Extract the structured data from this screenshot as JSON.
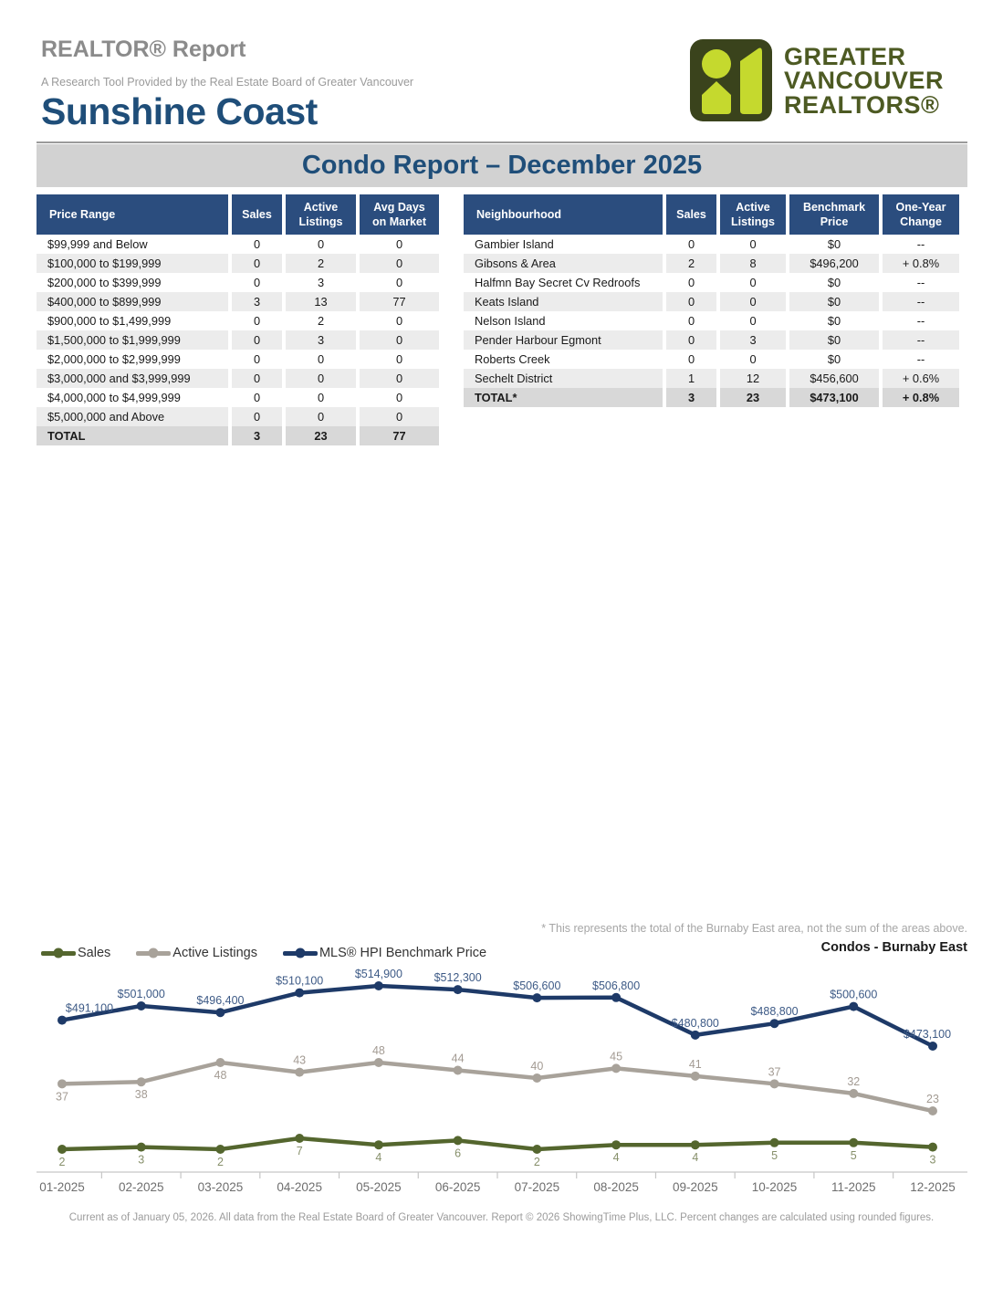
{
  "header": {
    "report_title": "REALTOR® Report",
    "report_subtitle": "A Research Tool Provided by the Real Estate Board of Greater Vancouver",
    "area_title": "Sunshine Coast",
    "banner_title": "Condo Report – December 2025",
    "logo": {
      "line1": "GREATER",
      "line2": "VANCOUVER",
      "line3": "REALTORS®",
      "dark_olive": "#3a431c",
      "lime": "#c5d92e",
      "text_color": "#4d5a23"
    }
  },
  "price_table": {
    "columns": [
      "Price Range",
      "Sales",
      "Active\nListings",
      "Avg Days\non Market"
    ],
    "rows": [
      [
        "$99,999 and Below",
        "0",
        "0",
        "0"
      ],
      [
        "$100,000 to $199,999",
        "0",
        "2",
        "0"
      ],
      [
        "$200,000 to $399,999",
        "0",
        "3",
        "0"
      ],
      [
        "$400,000 to $899,999",
        "3",
        "13",
        "77"
      ],
      [
        "$900,000 to $1,499,999",
        "0",
        "2",
        "0"
      ],
      [
        "$1,500,000 to $1,999,999",
        "0",
        "3",
        "0"
      ],
      [
        "$2,000,000 to $2,999,999",
        "0",
        "0",
        "0"
      ],
      [
        "$3,000,000 and $3,999,999",
        "0",
        "0",
        "0"
      ],
      [
        "$4,000,000 to $4,999,999",
        "0",
        "0",
        "0"
      ],
      [
        "$5,000,000 and Above",
        "0",
        "0",
        "0"
      ]
    ],
    "total_row": [
      "TOTAL",
      "3",
      "23",
      "77"
    ]
  },
  "neighbourhood_table": {
    "columns": [
      "Neighbourhood",
      "Sales",
      "Active\nListings",
      "Benchmark\nPrice",
      "One-Year\nChange"
    ],
    "rows": [
      [
        "Gambier Island",
        "0",
        "0",
        "$0",
        "--"
      ],
      [
        "Gibsons & Area",
        "2",
        "8",
        "$496,200",
        "+ 0.8%"
      ],
      [
        "Halfmn Bay Secret Cv Redroofs",
        "0",
        "0",
        "$0",
        "--"
      ],
      [
        "Keats Island",
        "0",
        "0",
        "$0",
        "--"
      ],
      [
        "Nelson Island",
        "0",
        "0",
        "$0",
        "--"
      ],
      [
        "Pender Harbour Egmont",
        "0",
        "3",
        "$0",
        "--"
      ],
      [
        "Roberts Creek",
        "0",
        "0",
        "$0",
        "--"
      ],
      [
        "Sechelt District",
        "1",
        "12",
        "$456,600",
        "+ 0.6%"
      ]
    ],
    "total_row": [
      "TOTAL*",
      "3",
      "23",
      "$473,100",
      "+ 0.8%"
    ]
  },
  "chart": {
    "note": "* This represents the total of the Burnaby East area, not the sum of the areas above.",
    "title": "Condos - Burnaby East",
    "legend": [
      {
        "label": "Sales",
        "color": "#54662e"
      },
      {
        "label": "Active Listings",
        "color": "#a8a29a"
      },
      {
        "label": "MLS® HPI Benchmark Price",
        "color": "#1e3a68"
      }
    ]
  },
  "chart_data": {
    "type": "line",
    "title": "Condos - Burnaby East",
    "x": [
      "01-2025",
      "02-2025",
      "03-2025",
      "04-2025",
      "05-2025",
      "06-2025",
      "07-2025",
      "08-2025",
      "09-2025",
      "10-2025",
      "11-2025",
      "12-2025"
    ],
    "series": [
      {
        "name": "Sales",
        "values": [
          2,
          3,
          2,
          7,
          4,
          6,
          2,
          4,
          4,
          5,
          5,
          3
        ],
        "color": "#54662e",
        "label_color": "#87906b",
        "labels_position": "below"
      },
      {
        "name": "Active Listings",
        "values": [
          37,
          38,
          48,
          43,
          48,
          44,
          40,
          45,
          41,
          37,
          32,
          23
        ],
        "color": "#a8a29a",
        "label_color": "#a39b93",
        "labels_position": "above",
        "labels_below_indices": [
          0,
          1,
          2
        ]
      },
      {
        "name": "MLS® HPI Benchmark Price",
        "values": [
          491100,
          501000,
          496400,
          510100,
          514900,
          512300,
          506600,
          506800,
          480800,
          488800,
          500600,
          473100
        ],
        "color": "#1e3a68",
        "label_color": "#3d5a86",
        "labels_position": "above",
        "labels_format": "currency"
      }
    ],
    "legend_position": "top-left",
    "grid": false
  },
  "footer": {
    "text": "Current as of January 05, 2026. All data from the Real Estate Board of Greater Vancouver.  Report © 2026 ShowingTime Plus, LLC. Percent changes are calculated using rounded figures."
  }
}
